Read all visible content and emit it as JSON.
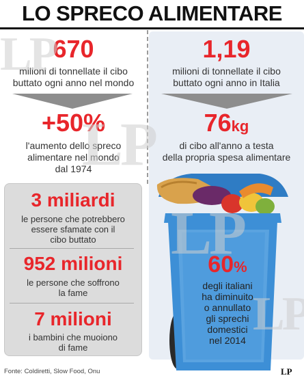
{
  "title": "LO SPRECO ALIMENTARE",
  "world": {
    "value": "670",
    "text_l1": "milioni di tonnellate il cibo",
    "text_l2": "buttato ogni anno nel mondo"
  },
  "italy": {
    "value": "1,19",
    "text_l1": "milioni di tonnellate il cibo",
    "text_l2": "buttato ogni anno in Italia"
  },
  "increase": {
    "value": "+50%",
    "text_l1": "l'aumento dello spreco",
    "text_l2": "alimentare nel mondo",
    "text_l3": "dal 1974"
  },
  "per_capita": {
    "value": "76",
    "unit": "kg",
    "text_l1": "di cibo all'anno a testa",
    "text_l2": "della propria spesa alimentare"
  },
  "stats": [
    {
      "value": "3 miliardi",
      "l1": "le persone che potrebbero",
      "l2": "essere sfamate con il",
      "l3": "cibo buttato"
    },
    {
      "value": "952 milioni",
      "l1": "le persone che soffrono",
      "l2": "la fame",
      "l3": ""
    },
    {
      "value": "7 milioni",
      "l1": "i bambini che muoiono",
      "l2": "di fame",
      "l3": ""
    }
  ],
  "bin": {
    "value": "60",
    "unit": "%",
    "l1": "degli italiani",
    "l2": "ha diminuito",
    "l3": "o annullato",
    "l4": "gli sprechi",
    "l5": "domestici",
    "l6": "nel 2014"
  },
  "source": "Fonte: Coldiretti, Slow Food, Onu",
  "watermark": "LP",
  "colors": {
    "accent": "#e8262b",
    "bin_blue": "#3d8fd6",
    "bin_dark": "#2a6fb0",
    "panel": "#e9eef5",
    "box": "#dcdcdc"
  }
}
